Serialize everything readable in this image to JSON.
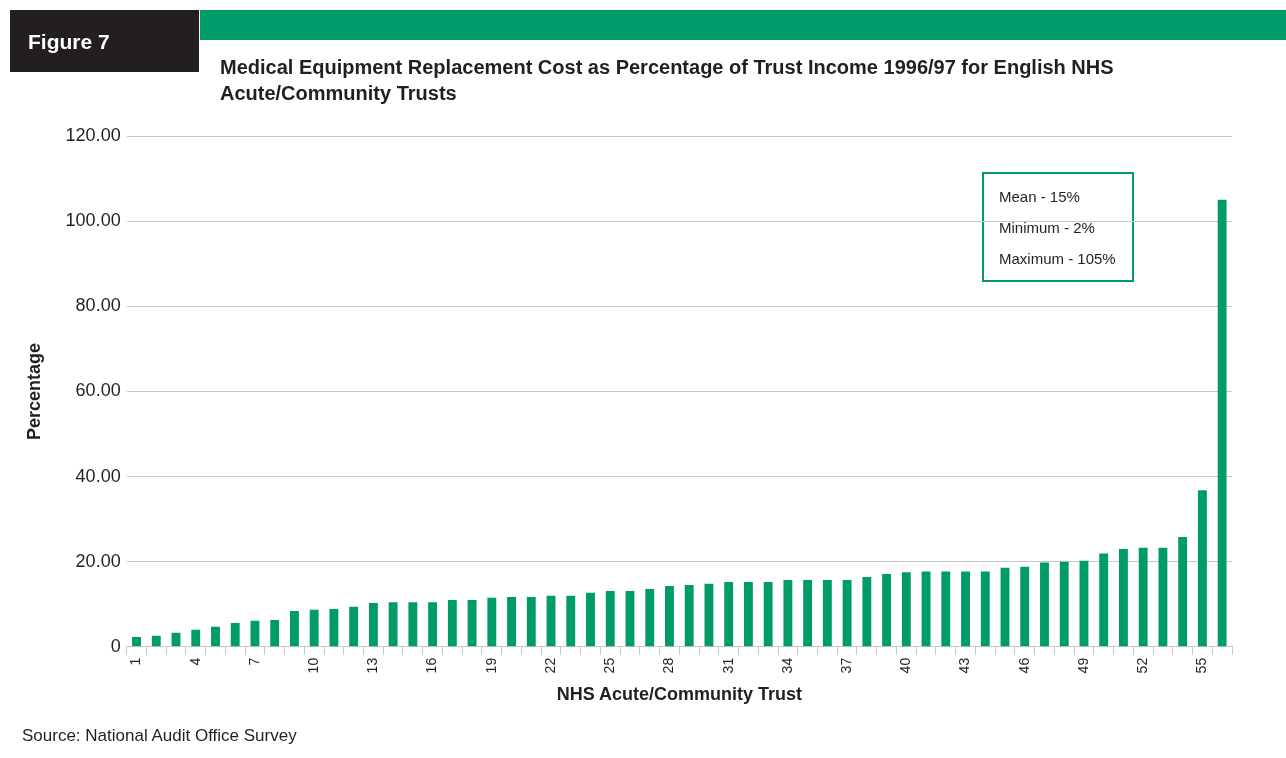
{
  "chart_data": {
    "type": "bar",
    "title": "Medical Equipment Replacement Cost as Percentage of Trust Income 1996/97 for English NHS Acute/Community Trusts",
    "xlabel": "NHS Acute/Community Trust",
    "ylabel": "Percentage",
    "categories": [
      "1",
      null,
      null,
      "4",
      null,
      null,
      "7",
      null,
      null,
      "10",
      null,
      null,
      "13",
      null,
      null,
      "16",
      null,
      null,
      "19",
      null,
      null,
      "22",
      null,
      null,
      "25",
      null,
      null,
      "28",
      null,
      null,
      "31",
      null,
      null,
      "34",
      null,
      null,
      "37",
      null,
      null,
      "40",
      null,
      null,
      "43",
      null,
      null,
      "46",
      null,
      null,
      "49",
      null,
      null,
      "52",
      null,
      null,
      "55",
      null
    ],
    "values": [
      2.3,
      2.6,
      3.3,
      4.0,
      4.7,
      5.6,
      6.1,
      6.3,
      8.4,
      8.7,
      8.9,
      9.4,
      10.3,
      10.5,
      10.5,
      10.5,
      11.0,
      11.0,
      11.5,
      11.7,
      11.7,
      12.0,
      12.0,
      12.7,
      13.1,
      13.1,
      13.6,
      14.3,
      14.5,
      14.8,
      15.2,
      15.2,
      15.2,
      15.7,
      15.7,
      15.7,
      15.7,
      16.4,
      17.1,
      17.5,
      17.7,
      17.7,
      17.7,
      17.7,
      18.6,
      18.8,
      19.8,
      20.0,
      20.2,
      21.9,
      23.0,
      23.3,
      23.3,
      25.8,
      36.8,
      105
    ],
    "color": "#009b6b",
    "ylim": [
      0,
      120
    ],
    "yticks": [
      0,
      {
        "value": 20,
        "label": "20.00"
      },
      {
        "value": 40,
        "label": "40.00"
      },
      {
        "value": 60,
        "label": "60.00"
      },
      {
        "value": 80,
        "label": "80.00"
      },
      {
        "value": 100,
        "label": "100.00"
      },
      {
        "value": 120,
        "label": "120.00"
      }
    ],
    "grid": "y",
    "legend": false,
    "annotations": [
      "Figure 7",
      "Mean - 15%",
      "Minimum - 2%",
      "Maximum - 105%",
      "Source: National Audit Office Survey"
    ]
  }
}
